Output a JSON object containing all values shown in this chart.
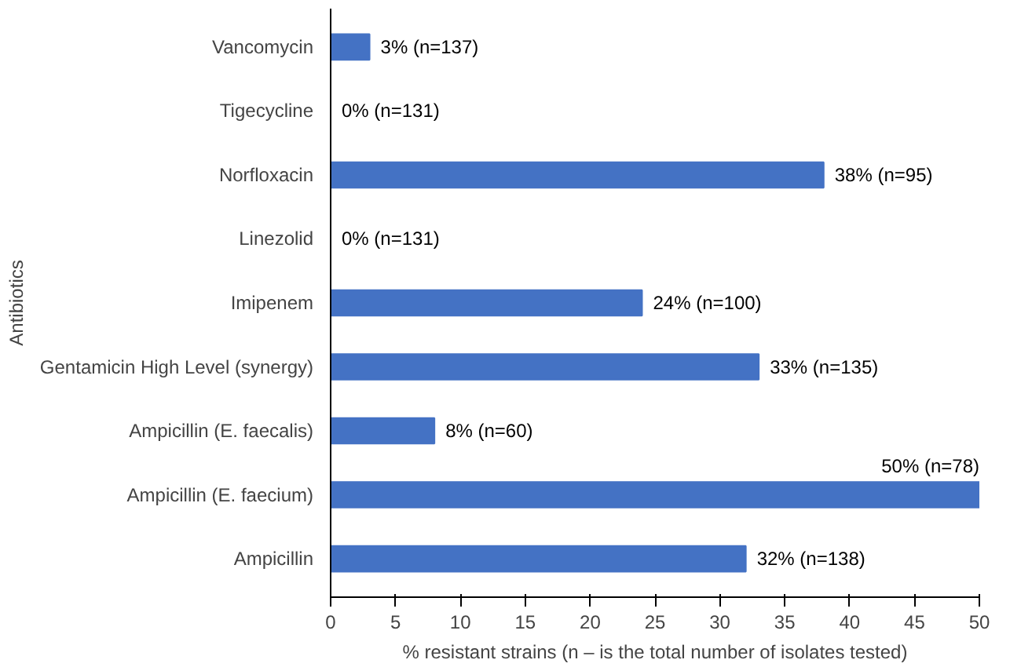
{
  "chart_data": {
    "type": "bar",
    "orientation": "horizontal",
    "xlabel": "% resistant strains (n – is the total number of isolates tested)",
    "ylabel": "Antibiotics",
    "categories": [
      "Vancomycin",
      "Tigecycline",
      "Norfloxacin",
      "Linezolid",
      "Imipenem",
      "Gentamicin High Level (synergy)",
      "Ampicillin (E. faecalis)",
      "Ampicillin (E. faecium)",
      "Ampicillin"
    ],
    "values": [
      3,
      0,
      38,
      0,
      24,
      33,
      8,
      50,
      32
    ],
    "value_labels": [
      "3% (n=137)",
      "0% (n=131)",
      "38% (n=95)",
      "0% (n=131)",
      "24% (n=100)",
      "33% (n=135)",
      "8% (n=60)",
      "50% (n=78)",
      "32% (n=138)"
    ],
    "color": "#4472c4",
    "xlim": [
      0,
      50
    ],
    "xticks": [
      0,
      5,
      10,
      15,
      20,
      25,
      30,
      35,
      40,
      45,
      50
    ],
    "grid": false
  }
}
